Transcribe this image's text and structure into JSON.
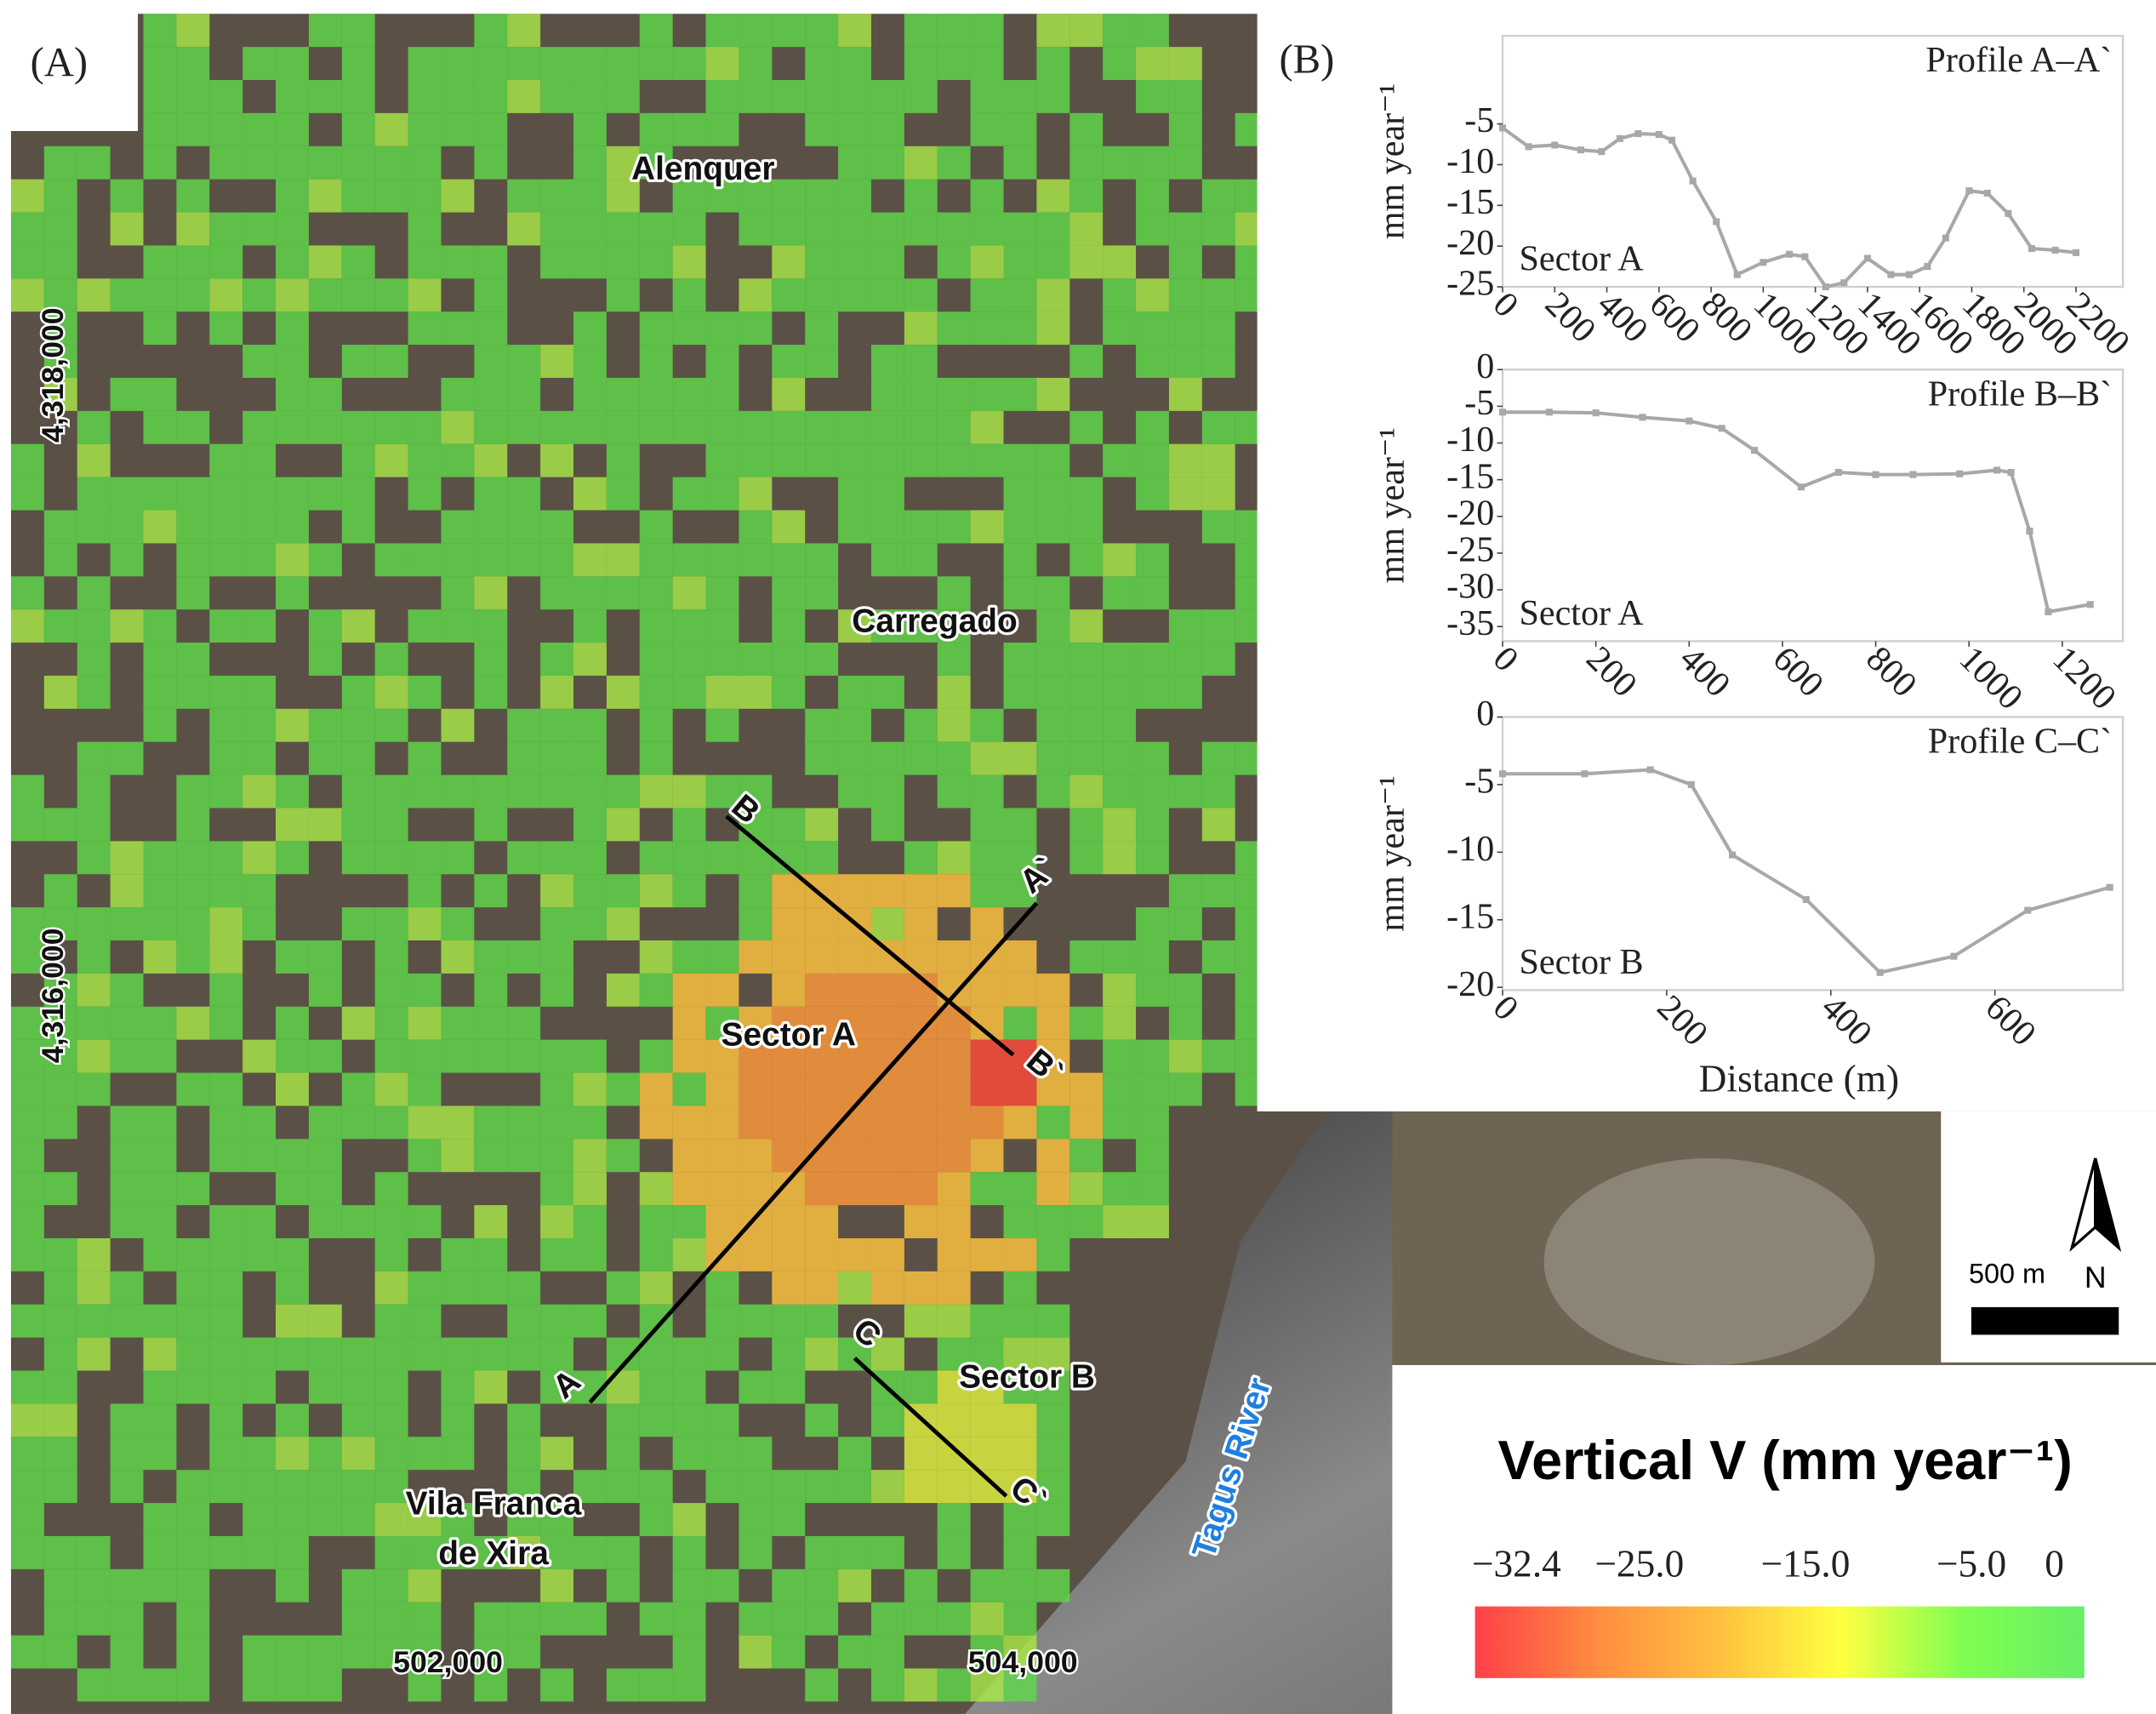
{
  "labels": {
    "a": "(A)",
    "b": "(B)"
  },
  "map": {
    "places": [
      "Alenquer",
      "Carregado",
      "Sector A",
      "Sector B",
      "Vila Franca",
      "de Xira",
      "Tagus River"
    ],
    "northings": [
      "4,318,000",
      "4,316,000"
    ],
    "eastings": [
      "502,000",
      "504,000"
    ],
    "profile_ends": [
      "A",
      "A`",
      "B",
      "B`",
      "C",
      "C`"
    ],
    "scale_bar": "500 m",
    "north": "N",
    "colorbar": {
      "title": "Vertical V (mm year⁻¹)",
      "lim": [
        -34.9,
        1.8
      ],
      "ticks": [
        {
          "value": -32.4,
          "label": "−32.4"
        },
        {
          "value": -25.0,
          "label": "−25.0"
        },
        {
          "value": -15.0,
          "label": "−15.0"
        },
        {
          "value": -5.0,
          "label": "−5.0"
        },
        0
      ],
      "colors": [
        "#ff4048",
        "#ff8c40",
        "#ffc040",
        "#ffff40",
        "#80ff50",
        "#66ee66"
      ]
    }
  },
  "chart_data": [
    {
      "type": "line",
      "title": "Profile A–A`",
      "annotation": "Sector A",
      "ylabel": "mm year⁻¹",
      "color": "#a8a8a8",
      "x": [
        0,
        100,
        200,
        300,
        380,
        450,
        520,
        600,
        650,
        730,
        820,
        900,
        1000,
        1100,
        1160,
        1240,
        1310,
        1400,
        1490,
        1560,
        1630,
        1700,
        1790,
        1860,
        1940,
        2030,
        2120,
        2200
      ],
      "values": [
        -5.5,
        -7.8,
        -7.6,
        -8.2,
        -8.4,
        -6.8,
        -6.2,
        -6.3,
        -7,
        -12,
        -17,
        -23.5,
        -22,
        -21,
        -21.3,
        -25,
        -24.5,
        -21.5,
        -23.5,
        -23.5,
        -22.5,
        -19,
        -13.2,
        -13.5,
        -16,
        -20.3,
        -20.5,
        -20.8
      ],
      "xlim": [
        0,
        2380
      ],
      "ylim": [
        -25,
        5.8
      ],
      "xticks": [
        0,
        200,
        400,
        600,
        800,
        1000,
        1200,
        1400,
        1600,
        1800,
        2000,
        2200
      ],
      "yticks": [
        -5,
        -10,
        -15,
        -20,
        -25
      ]
    },
    {
      "type": "line",
      "title": "Profile B–B`",
      "annotation": "Sector A",
      "ylabel": "mm year⁻¹",
      "color": "#a8a8a8",
      "x": [
        0,
        100,
        200,
        300,
        400,
        470,
        540,
        640,
        720,
        800,
        880,
        980,
        1060,
        1090,
        1130,
        1170,
        1260
      ],
      "values": [
        -5.8,
        -5.8,
        -5.9,
        -6.5,
        -7,
        -8,
        -11,
        -16,
        -14,
        -14.3,
        -14.3,
        -14.2,
        -13.7,
        -14,
        -22,
        -33,
        -32
      ],
      "xlim": [
        0,
        1330
      ],
      "ylim": [
        -37,
        0
      ],
      "xticks": [
        0,
        200,
        400,
        600,
        800,
        1000,
        1200
      ],
      "yticks": [
        0,
        -5,
        -10,
        -15,
        -20,
        -25,
        -30,
        -35
      ]
    },
    {
      "type": "line",
      "title": "Profile C–C`",
      "annotation": "Sector B",
      "ylabel": "mm year⁻¹",
      "xlabel": "Distance (m)",
      "color": "#a8a8a8",
      "x": [
        0,
        100,
        180,
        230,
        280,
        370,
        460,
        550,
        640,
        740
      ],
      "values": [
        -4.2,
        -4.2,
        -3.9,
        -5,
        -10.2,
        -13.5,
        -18.9,
        -17.7,
        -14.3,
        -12.6
      ],
      "xlim": [
        0,
        756
      ],
      "ylim": [
        -20.2,
        0
      ],
      "xticks": [
        0,
        200,
        400,
        600
      ],
      "yticks": [
        0,
        -5,
        -10,
        -15,
        -20
      ]
    }
  ]
}
